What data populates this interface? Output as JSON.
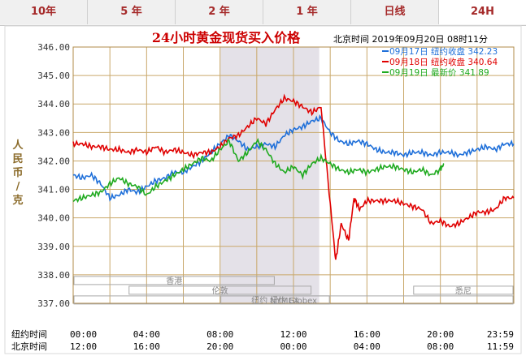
{
  "tabs": [
    {
      "label": "10年",
      "active": false
    },
    {
      "label": "5 年",
      "active": false
    },
    {
      "label": "2 年",
      "active": false
    },
    {
      "label": "1 年",
      "active": false
    },
    {
      "label": "日线",
      "active": false
    },
    {
      "label": "24H",
      "active": true
    }
  ],
  "chart_data": {
    "type": "line",
    "title": "24小时黄金现货买入价格",
    "time_label": "北京时间  2019年09月20日 08时11分",
    "ylabel": "人民币/克",
    "ylim": [
      337,
      346
    ],
    "y_ticks": [
      "346.00",
      "345.00",
      "344.00",
      "343.00",
      "342.00",
      "341.00",
      "340.00",
      "339.00",
      "338.00",
      "337.00"
    ],
    "x_range_hours": [
      0,
      24
    ],
    "x_rows": [
      {
        "label": "纽约时间",
        "ticks": [
          "00:00",
          "04:00",
          "08:00",
          "12:00",
          "16:00",
          "20:00",
          "23:59"
        ]
      },
      {
        "label": "北京时间",
        "ticks": [
          "12:00",
          "16:00",
          "20:00",
          "00:00",
          "04:00",
          "08:00",
          "11:59"
        ]
      }
    ],
    "shaded_session_hours": [
      8,
      13.4
    ],
    "market_sessions": [
      {
        "name": "香港",
        "start": 0,
        "end": 11
      },
      {
        "name": "伦敦",
        "start": 3,
        "end": 13
      },
      {
        "name": "纽约 NYMEX",
        "start": 8,
        "end": 14
      },
      {
        "name": "纽约 Globex",
        "start": 0,
        "end": 24
      },
      {
        "name": "悉尼",
        "start": 18.5,
        "end": 24
      }
    ],
    "series": [
      {
        "name": "09月17日",
        "note": "纽约收盘 342.23",
        "color": "#1e6fd9",
        "x": [
          0,
          0.5,
          1,
          1.5,
          2,
          2.5,
          3,
          3.5,
          4,
          4.5,
          5,
          5.5,
          6,
          6.5,
          7,
          7.5,
          8,
          8.5,
          9,
          9.5,
          10,
          10.5,
          11,
          11.5,
          12,
          12.5,
          13,
          13.5,
          14,
          14.5,
          15,
          15.5,
          16,
          16.5,
          17,
          17.5,
          18,
          18.5,
          19,
          19.5,
          20,
          20.5,
          21,
          21.5,
          22,
          22.5,
          23,
          23.5,
          24
        ],
        "values": [
          341.5,
          341.4,
          341.5,
          341.2,
          340.7,
          340.8,
          341.0,
          340.9,
          341.1,
          341.3,
          341.4,
          341.6,
          341.6,
          341.8,
          342.0,
          342.3,
          342.6,
          342.9,
          342.7,
          342.4,
          342.5,
          342.6,
          342.5,
          342.9,
          343.1,
          343.2,
          343.4,
          343.5,
          343.0,
          342.7,
          342.6,
          342.7,
          342.6,
          342.4,
          342.3,
          342.3,
          342.2,
          342.3,
          342.3,
          342.2,
          342.3,
          342.3,
          342.2,
          342.3,
          342.4,
          342.5,
          342.4,
          342.6,
          342.6
        ]
      },
      {
        "name": "09月18日",
        "note": "纽约收盘 340.64",
        "color": "#e00000",
        "x": [
          0,
          0.5,
          1,
          1.5,
          2,
          2.5,
          3,
          3.5,
          4,
          4.5,
          5,
          5.5,
          6,
          6.5,
          7,
          7.5,
          8,
          8.5,
          9,
          9.5,
          10,
          10.5,
          11,
          11.5,
          12,
          12.5,
          13,
          13.5,
          14,
          14.3,
          14.6,
          15,
          15.3,
          15.6,
          16,
          16.5,
          17,
          17.5,
          18,
          18.5,
          19,
          19.5,
          20,
          20.5,
          21,
          21.5,
          22,
          22.5,
          23,
          23.5,
          24
        ],
        "values": [
          342.6,
          342.6,
          342.5,
          342.5,
          342.4,
          342.4,
          342.3,
          342.4,
          342.3,
          342.5,
          342.3,
          342.4,
          342.3,
          342.2,
          342.3,
          342.3,
          342.5,
          342.8,
          342.9,
          343.2,
          343.5,
          343.3,
          343.8,
          344.2,
          344.1,
          343.9,
          343.7,
          343.9,
          340.5,
          338.5,
          339.8,
          339.2,
          340.7,
          340.3,
          340.6,
          340.6,
          340.6,
          340.6,
          340.5,
          340.4,
          340.3,
          339.8,
          339.9,
          339.7,
          339.8,
          340.0,
          340.2,
          340.2,
          340.3,
          340.7,
          340.7
        ]
      },
      {
        "name": "09月19日",
        "note": "最新价 341.89",
        "color": "#1faa1f",
        "x": [
          0,
          0.5,
          1,
          1.5,
          2,
          2.5,
          3,
          3.5,
          4,
          4.5,
          5,
          5.5,
          6,
          6.5,
          7,
          7.5,
          8,
          8.5,
          9,
          9.5,
          10,
          10.5,
          11,
          11.5,
          12,
          12.5,
          13,
          13.5,
          14,
          14.5,
          15,
          15.5,
          16,
          16.5,
          17,
          17.5,
          18,
          18.5,
          19,
          19.5,
          20,
          20.2
        ],
        "values": [
          340.6,
          340.7,
          340.8,
          340.9,
          341.2,
          341.4,
          341.2,
          341.1,
          340.8,
          341.1,
          341.3,
          341.5,
          341.7,
          341.9,
          342.1,
          342.0,
          342.4,
          342.7,
          342.0,
          342.3,
          342.7,
          342.4,
          341.9,
          341.6,
          341.8,
          341.5,
          341.9,
          342.1,
          341.9,
          341.7,
          341.6,
          341.7,
          341.6,
          341.7,
          341.8,
          341.8,
          341.7,
          341.6,
          341.7,
          341.5,
          341.7,
          341.9
        ]
      }
    ]
  }
}
